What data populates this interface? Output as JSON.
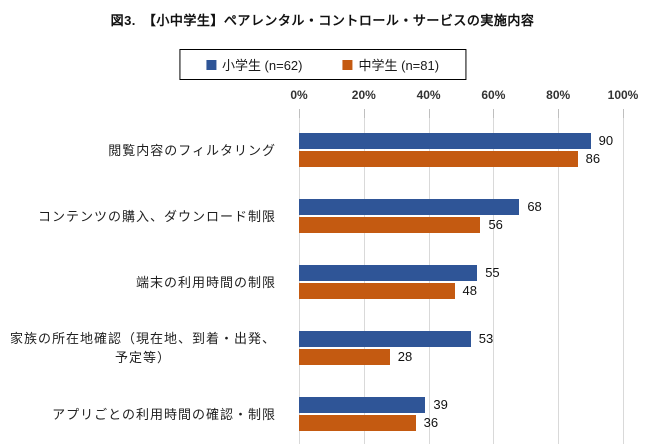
{
  "chart_data": {
    "type": "bar",
    "orientation": "horizontal",
    "title": "図3.　【小中学生】ペアレンタル・コントロール・サービスの実施内容",
    "categories": [
      "閲覧内容のフィルタリング",
      "コンテンツの購入、ダウンロード制限",
      "端末の利用時間の制限",
      "家族の所在地確認（現在地、到着・出発、予定等）",
      "アプリごとの利用時間の確認・制限"
    ],
    "category_display_lines": [
      [
        "閲覧内容のフィルタリング"
      ],
      [
        "コンテンツの購入、ダウンロード制限"
      ],
      [
        "端末の利用時間の制限"
      ],
      [
        "家族の所在地確認（現在地、到着・出発、",
        "予定等）"
      ],
      [
        "アプリごとの利用時間の確認・制限"
      ]
    ],
    "series": [
      {
        "name": "小学生 (n=62)",
        "color": "#2F5597",
        "values": [
          90,
          68,
          55,
          53,
          39
        ]
      },
      {
        "name": "中学生 (n=81)",
        "color": "#C45A11",
        "values": [
          86,
          56,
          48,
          28,
          36
        ]
      }
    ],
    "xlim": [
      0,
      100
    ],
    "xtick_values": [
      0,
      20,
      40,
      60,
      80,
      100
    ],
    "xtick_labels": [
      "0%",
      "20%",
      "40%",
      "60%",
      "80%",
      "100%"
    ],
    "grid": true,
    "gridline_color": "#D9D9D9",
    "tick_color": "#BFBFBF",
    "legend_position": "top",
    "value_labels_shown": true
  }
}
